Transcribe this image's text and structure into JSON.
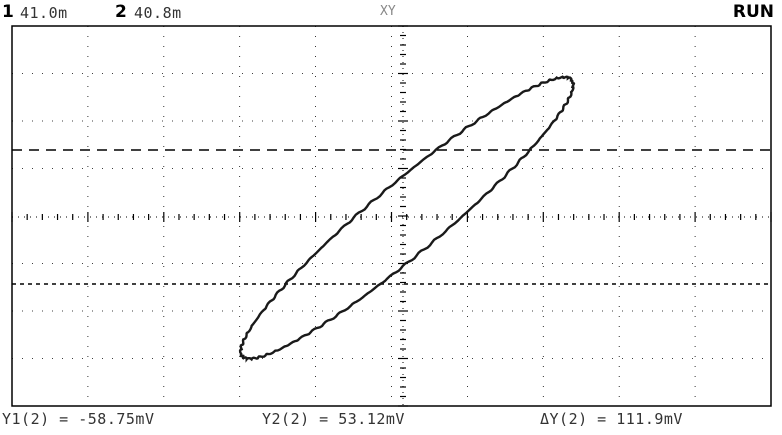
{
  "status_bar": {
    "ch1_label": "1",
    "ch1_value": "41.0m",
    "ch2_label": "2",
    "ch2_value": "40.8m",
    "mode": "XY",
    "run_state": "RUN"
  },
  "measurements": {
    "y1": "Y1(2) = -58.75mV",
    "y2": "Y2(2) = 53.12mV",
    "dy": "ΔY(2) = 111.9mV"
  },
  "colors": {
    "trace": "#1a1a1a",
    "grid": "#000000",
    "background": "#ffffff"
  },
  "trace": {
    "shape": "ellipse",
    "orientation": "tilted-up-right"
  }
}
